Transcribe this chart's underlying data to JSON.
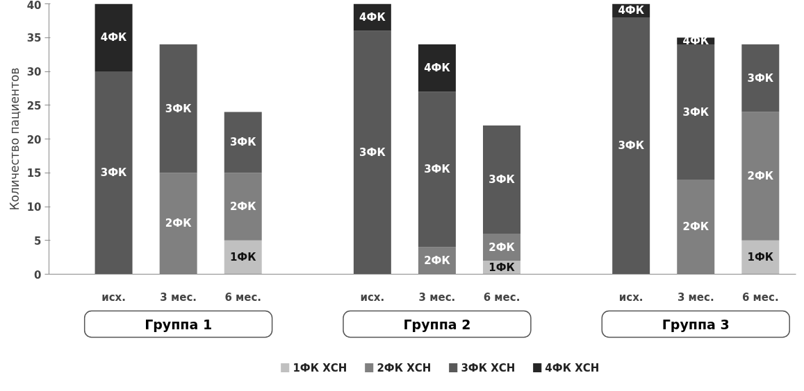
{
  "chart_data": {
    "type": "bar",
    "stacked": true,
    "ylabel": "Количество пациентов",
    "categories": [
      "исх.",
      "3 мес.",
      "6 мес.",
      "исх.",
      "3 мес.",
      "6 мес.",
      "исх.",
      "3 мес.",
      "6 мес."
    ],
    "annotations": [
      "Группа 1",
      "Группа 2",
      "Группа 3",
      "3ФК",
      "4ФК",
      "2ФК",
      "3ФК",
      "1ФК",
      "2ФК",
      "3ФК",
      "3ФК",
      "4ФК",
      "2ФК",
      "3ФК",
      "4ФК",
      "1ФК",
      "2ФК",
      "3ФК",
      "3ФК",
      "4ФК",
      "2ФК",
      "3ФК",
      "4ФК",
      "1ФК",
      "2ФК",
      "3ФК"
    ],
    "series": [
      {
        "name": "1ФК ХСН",
        "color": "#c0c0c0",
        "values": [
          0,
          0,
          5,
          0,
          0,
          2,
          0,
          0,
          5
        ]
      },
      {
        "name": "2ФК ХСН",
        "color": "#808080",
        "values": [
          0,
          15,
          10,
          0,
          4,
          4,
          0,
          14,
          19
        ]
      },
      {
        "name": "3ФК ХСН",
        "color": "#595959",
        "values": [
          30,
          19,
          9,
          36,
          23,
          16,
          38,
          20,
          10
        ]
      },
      {
        "name": "4ФК ХСН",
        "color": "#262626",
        "values": [
          10,
          0,
          0,
          4,
          7,
          0,
          2,
          1,
          0
        ]
      }
    ],
    "ylim": [
      0,
      40
    ],
    "yticks": [
      0,
      5,
      10,
      15,
      20,
      25,
      30,
      35,
      40
    ],
    "grid": false,
    "legend": "bottom"
  }
}
